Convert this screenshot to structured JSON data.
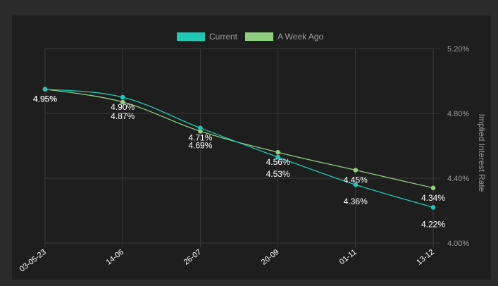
{
  "chart_data": {
    "type": "line",
    "x": [
      "03-05-23",
      "14-06",
      "26-07",
      "20-09",
      "01-11",
      "13-12"
    ],
    "series": [
      {
        "name": "Current",
        "color": "#1ec8b5",
        "values": [
          4.95,
          4.9,
          4.71,
          4.53,
          4.36,
          4.22
        ],
        "labels": [
          "4.95%",
          "4.90%",
          "4.71%",
          "4.53%",
          "4.36%",
          "4.22%"
        ]
      },
      {
        "name": "A Week Ago",
        "color": "#8fcf80",
        "values": [
          4.95,
          4.87,
          4.69,
          4.56,
          4.45,
          4.34
        ],
        "labels": [
          "4.95%",
          "4.87%",
          "4.69%",
          "4.56%",
          "4.45%",
          "4.34%"
        ]
      }
    ],
    "ylabel": "Implied Interest Rate",
    "ylim": [
      4.0,
      5.2
    ],
    "yticks": [
      4.0,
      4.4,
      4.8,
      5.2
    ],
    "ytick_labels": [
      "4.00%",
      "4.40%",
      "4.80%",
      "5.20%"
    ],
    "y_axis_position": "right",
    "legend_position": "top",
    "grid": true
  }
}
